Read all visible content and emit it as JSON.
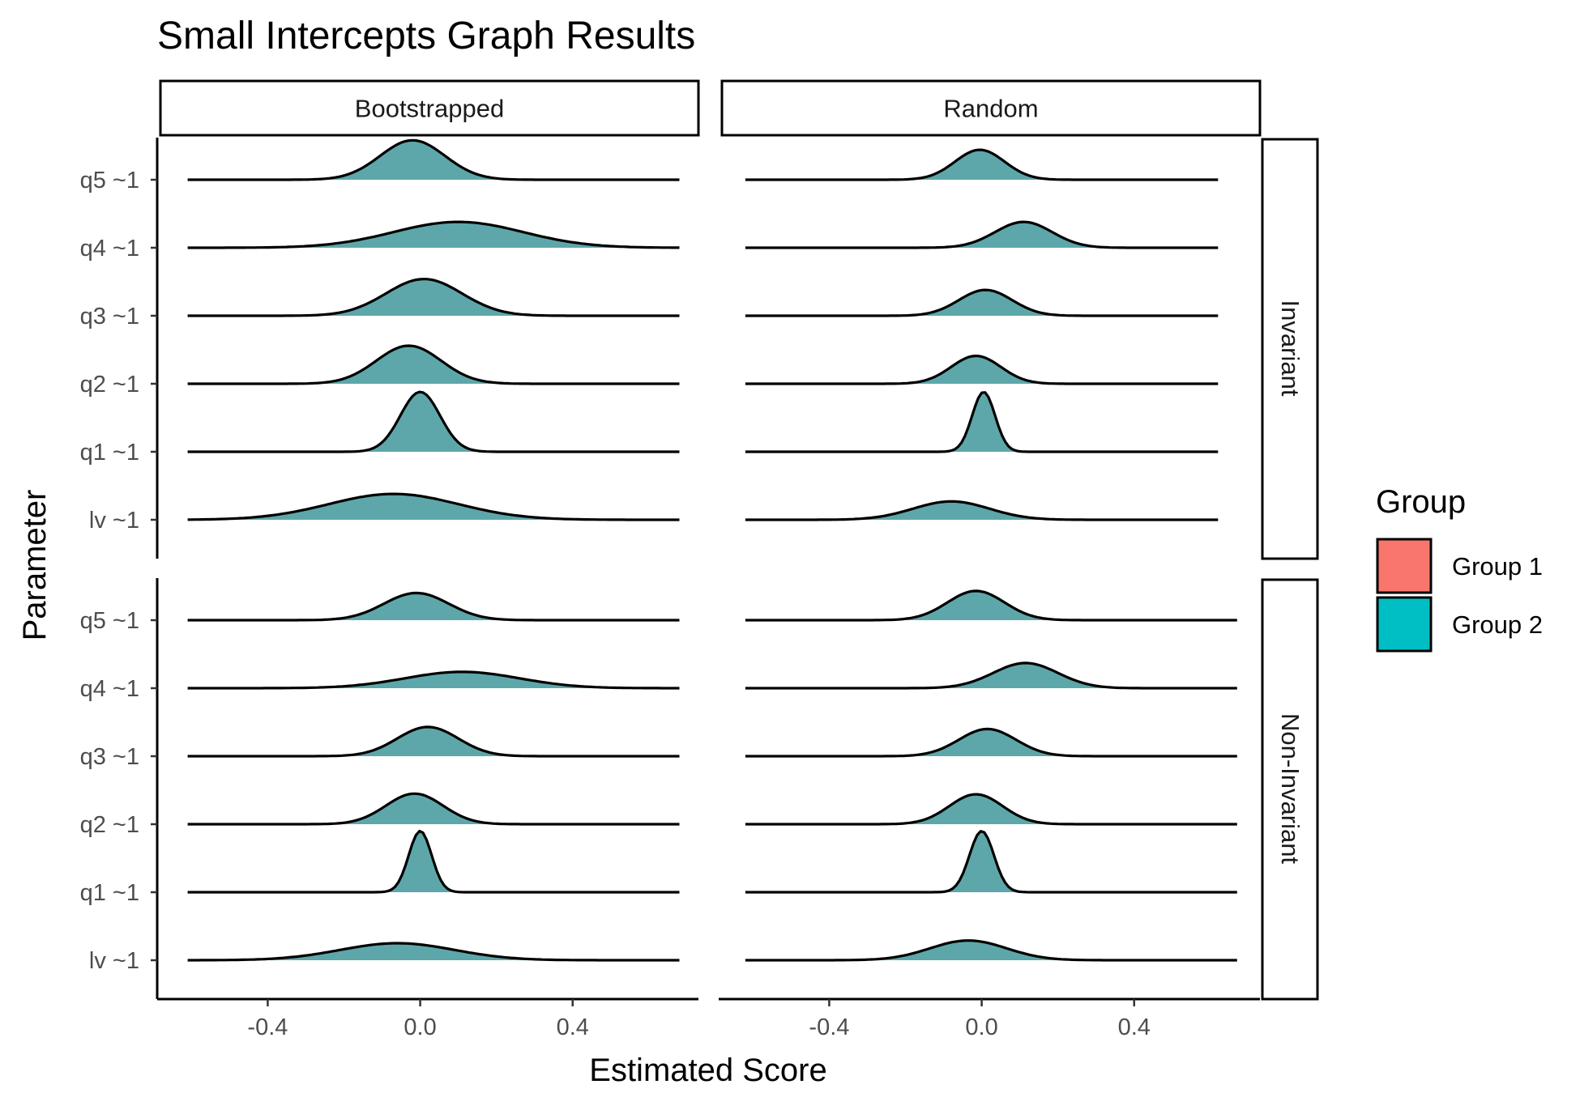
{
  "chart_data": {
    "type": "ridgeline",
    "title": "Small Intercepts Graph Results",
    "xlabel": "Estimated Score",
    "ylabel": "Parameter",
    "x_ticks": [
      -0.4,
      0.0,
      0.4
    ],
    "x_tick_labels": [
      "-0.4",
      "0.0",
      "0.4"
    ],
    "xlim": [
      -0.69,
      0.73
    ],
    "y_categories": [
      "lv ~1",
      "q1 ~1",
      "q2 ~1",
      "q3 ~1",
      "q4 ~1",
      "q5 ~1"
    ],
    "column_facets": [
      "Bootstrapped",
      "Random"
    ],
    "row_facets": [
      "Invariant",
      "Non-Invariant"
    ],
    "legend": {
      "title": "Group",
      "position": "right",
      "items": [
        {
          "label": "Group 1",
          "color": "#F8766D"
        },
        {
          "label": "Group 2",
          "color": "#00BFC4"
        }
      ]
    },
    "overlap_fill_color": "#5DA7AA",
    "panels": [
      {
        "col": "Bootstrapped",
        "row": "Invariant",
        "x_range": [
          -0.61,
          0.68
        ],
        "ridges": {
          "q5 ~1": {
            "mean": -0.02,
            "sd": 0.085,
            "height": 0.58
          },
          "q4 ~1": {
            "mean": 0.1,
            "sd": 0.17,
            "height": 0.38
          },
          "q3 ~1": {
            "mean": 0.01,
            "sd": 0.1,
            "height": 0.54
          },
          "q2 ~1": {
            "mean": -0.03,
            "sd": 0.085,
            "height": 0.56
          },
          "q1 ~1": {
            "mean": 0.0,
            "sd": 0.052,
            "height": 0.88
          },
          "lv ~1": {
            "mean": -0.07,
            "sd": 0.17,
            "height": 0.38
          }
        }
      },
      {
        "col": "Random",
        "row": "Invariant",
        "x_range": [
          -0.62,
          0.62
        ],
        "ridges": {
          "q5 ~1": {
            "mean": -0.005,
            "sd": 0.065,
            "height": 0.44
          },
          "q4 ~1": {
            "mean": 0.11,
            "sd": 0.075,
            "height": 0.38
          },
          "q3 ~1": {
            "mean": 0.01,
            "sd": 0.07,
            "height": 0.38
          },
          "q2 ~1": {
            "mean": -0.015,
            "sd": 0.065,
            "height": 0.41
          },
          "q1 ~1": {
            "mean": 0.005,
            "sd": 0.03,
            "height": 0.88
          },
          "lv ~1": {
            "mean": -0.08,
            "sd": 0.1,
            "height": 0.27
          }
        }
      },
      {
        "col": "Bootstrapped",
        "row": "Non-Invariant",
        "x_range": [
          -0.61,
          0.68
        ],
        "ridges": {
          "q5 ~1": {
            "mean": -0.01,
            "sd": 0.085,
            "height": 0.4
          },
          "q4 ~1": {
            "mean": 0.11,
            "sd": 0.15,
            "height": 0.24
          },
          "q3 ~1": {
            "mean": 0.02,
            "sd": 0.08,
            "height": 0.43
          },
          "q2 ~1": {
            "mean": -0.015,
            "sd": 0.075,
            "height": 0.45
          },
          "q1 ~1": {
            "mean": 0.0,
            "sd": 0.03,
            "height": 0.9
          },
          "lv ~1": {
            "mean": -0.06,
            "sd": 0.15,
            "height": 0.25
          }
        }
      },
      {
        "col": "Random",
        "row": "Non-Invariant",
        "x_range": [
          -0.62,
          0.67
        ],
        "ridges": {
          "q5 ~1": {
            "mean": -0.015,
            "sd": 0.075,
            "height": 0.43
          },
          "q4 ~1": {
            "mean": 0.115,
            "sd": 0.085,
            "height": 0.37
          },
          "q3 ~1": {
            "mean": 0.015,
            "sd": 0.075,
            "height": 0.4
          },
          "q2 ~1": {
            "mean": -0.015,
            "sd": 0.07,
            "height": 0.44
          },
          "q1 ~1": {
            "mean": 0.0,
            "sd": 0.032,
            "height": 0.9
          },
          "lv ~1": {
            "mean": -0.035,
            "sd": 0.1,
            "height": 0.29
          }
        }
      }
    ]
  }
}
